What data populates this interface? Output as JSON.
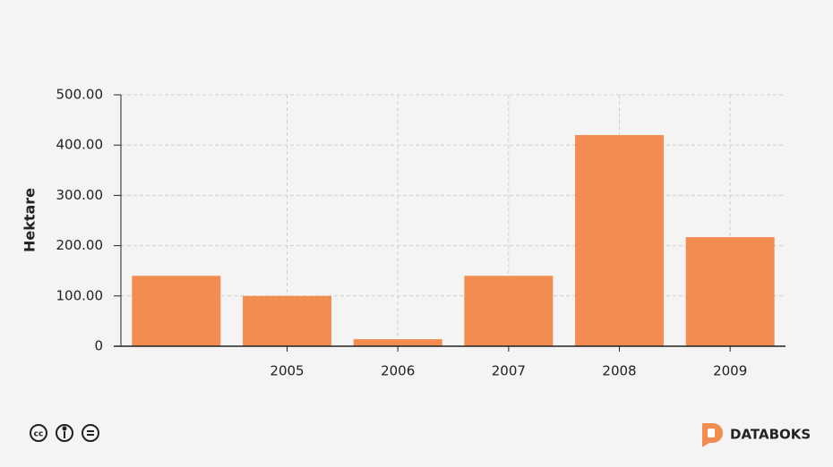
{
  "chart_data": {
    "type": "bar",
    "y_label": "Hektare",
    "categories": [
      null,
      "2005",
      "2006",
      "2007",
      "2008",
      "2009"
    ],
    "values": [
      140,
      100,
      14,
      140,
      420,
      217
    ],
    "color": "#f28c51",
    "ylim": [
      0,
      500
    ],
    "yticks": [
      0,
      {
        "value": 100,
        "label": "100.00"
      },
      {
        "value": 200,
        "label": "200.00"
      },
      {
        "value": 300,
        "label": "300.00"
      },
      {
        "value": 400,
        "label": "400.00"
      },
      {
        "value": 500,
        "label": "500.00"
      }
    ],
    "grid": true
  },
  "brand": "DATABOKS"
}
